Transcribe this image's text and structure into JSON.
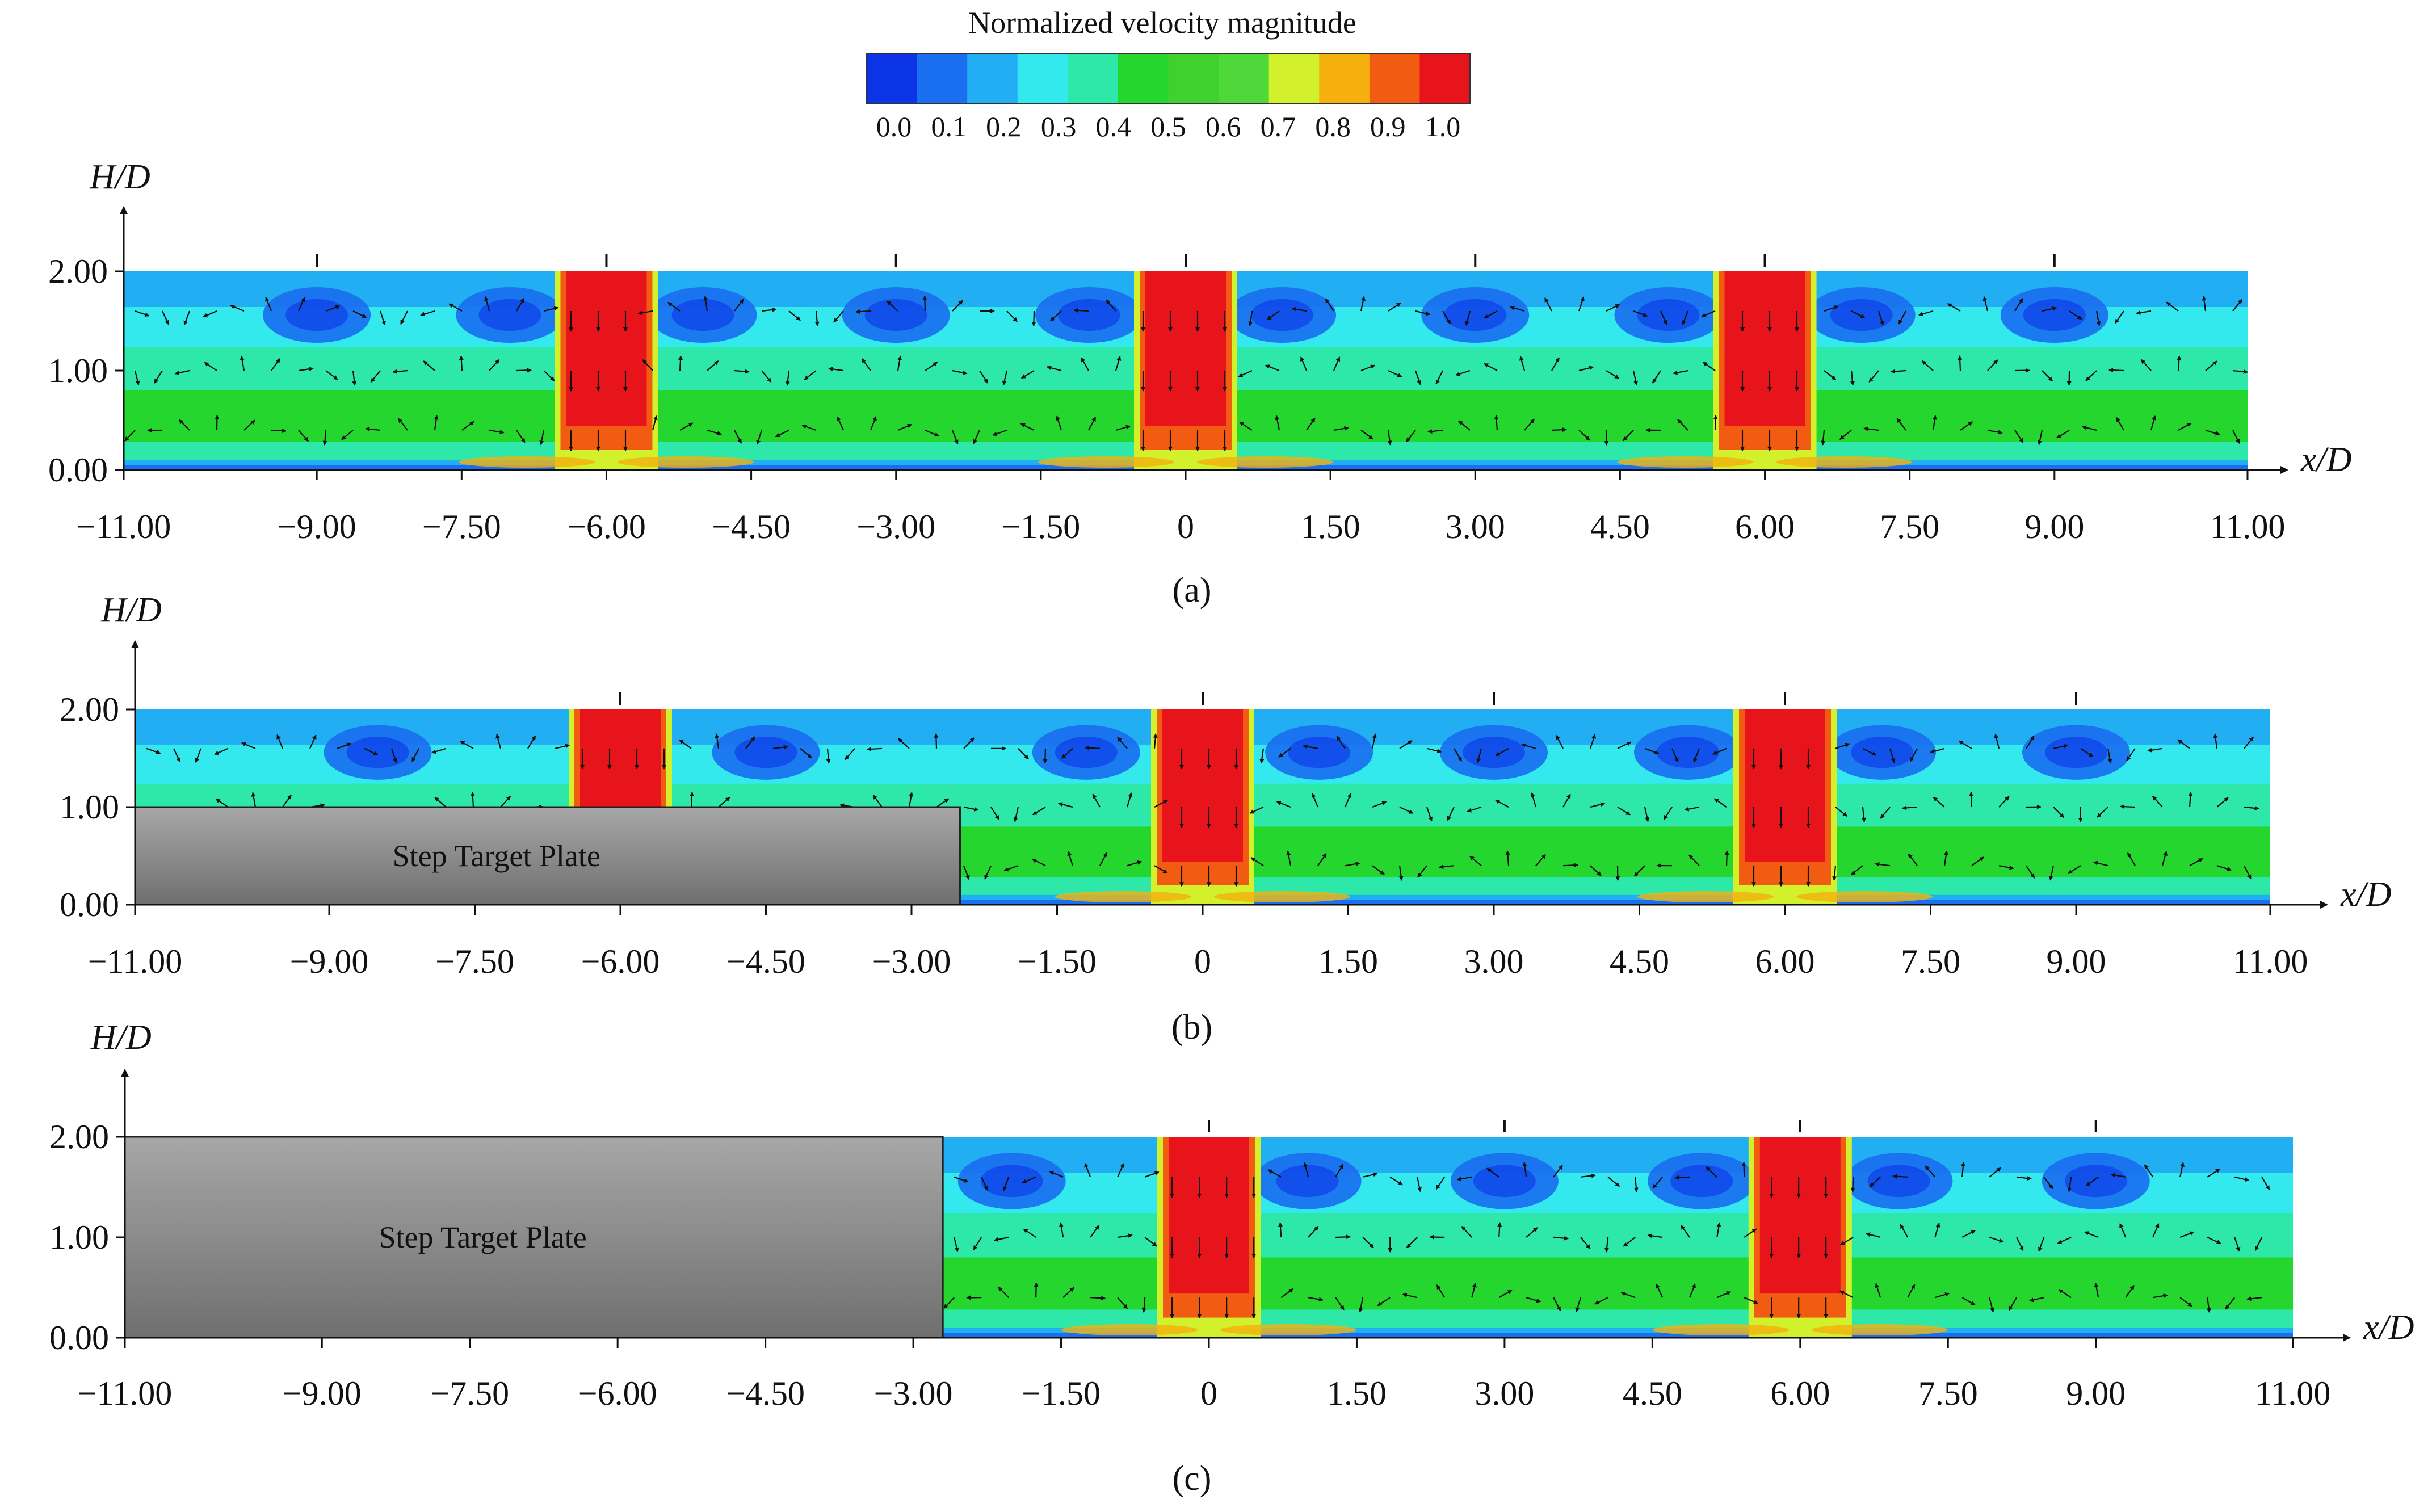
{
  "colorbar": {
    "title": "Normalized velocity magnitude",
    "colors": [
      "#0a34e6",
      "#1a6ef0",
      "#22aef3",
      "#33e9ee",
      "#2ee8a9",
      "#25d62f",
      "#3fd12d",
      "#4ed83a",
      "#d3f02c",
      "#f5b00e",
      "#f25c12",
      "#e8141c"
    ],
    "tick_labels": [
      "0.0",
      "0.1",
      "0.2",
      "0.3",
      "0.4",
      "0.5",
      "0.6",
      "0.7",
      "0.8",
      "0.9",
      "1.0"
    ]
  },
  "chart_data": [
    {
      "type": "heatmap",
      "title": "",
      "caption": "(a)",
      "xlabel": "x/D",
      "ylabel": "H/D",
      "x_ticks": [
        "−11.00",
        "−9.00",
        "−7.50",
        "−6.00",
        "−4.50",
        "−3.00",
        "−1.50",
        "0",
        "1.50",
        "3.00",
        "4.50",
        "6.00",
        "7.50",
        "9.00",
        "11.00"
      ],
      "x_tick_values": [
        -11,
        -9,
        -7.5,
        -6,
        -4.5,
        -3,
        -1.5,
        0,
        1.5,
        3,
        4.5,
        6,
        7.5,
        9,
        11
      ],
      "y_ticks": [
        "0.00",
        "1.00",
        "2.00"
      ],
      "y_tick_values": [
        0,
        1,
        2
      ],
      "xlim": [
        -11,
        11
      ],
      "ylim": [
        0,
        2
      ],
      "jets_x": [
        -6,
        0,
        6
      ],
      "vortex_centers_x": [
        -9,
        -7,
        -5,
        -3,
        -1,
        1,
        3,
        5,
        7,
        9
      ],
      "step_plate": null
    },
    {
      "type": "heatmap",
      "title": "",
      "caption": "(b)",
      "xlabel": "x/D",
      "ylabel": "H/D",
      "x_ticks": [
        "−11.00",
        "−9.00",
        "−7.50",
        "−6.00",
        "−4.50",
        "−3.00",
        "−1.50",
        "0",
        "1.50",
        "3.00",
        "4.50",
        "6.00",
        "7.50",
        "9.00",
        "11.00"
      ],
      "x_tick_values": [
        -11,
        -9,
        -7.5,
        -6,
        -4.5,
        -3,
        -1.5,
        0,
        1.5,
        3,
        4.5,
        6,
        7.5,
        9,
        11
      ],
      "y_ticks": [
        "0.00",
        "1.00",
        "2.00"
      ],
      "y_tick_values": [
        0,
        1,
        2
      ],
      "xlim": [
        -11,
        11
      ],
      "ylim": [
        0,
        2
      ],
      "jets_x": [
        -6,
        0,
        6
      ],
      "vortex_centers_x": [
        -8.5,
        -4.5,
        -1.2,
        1.2,
        3,
        5,
        7,
        9
      ],
      "step_plate": {
        "label": "Step Target Plate",
        "x_from": -11,
        "x_to": -2.5,
        "height": 1.0
      }
    },
    {
      "type": "heatmap",
      "title": "",
      "caption": "(c)",
      "xlabel": "x/D",
      "ylabel": "H/D",
      "x_ticks": [
        "−11.00",
        "−9.00",
        "−7.50",
        "−6.00",
        "−4.50",
        "−3.00",
        "−1.50",
        "0",
        "1.50",
        "3.00",
        "4.50",
        "6.00",
        "7.50",
        "9.00",
        "11.00"
      ],
      "x_tick_values": [
        -11,
        -9,
        -7.5,
        -6,
        -4.5,
        -3,
        -1.5,
        0,
        1.5,
        3,
        4.5,
        6,
        7.5,
        9,
        11
      ],
      "y_ticks": [
        "0.00",
        "1.00",
        "2.00"
      ],
      "y_tick_values": [
        0,
        1,
        2
      ],
      "xlim": [
        -11,
        11
      ],
      "ylim": [
        0,
        2
      ],
      "jets_x": [
        0,
        6
      ],
      "vortex_centers_x": [
        -2,
        1,
        3,
        5,
        7,
        9
      ],
      "step_plate": {
        "label": "Step Target Plate",
        "x_from": -11,
        "x_to": -2.7,
        "height": 2.0
      }
    }
  ]
}
